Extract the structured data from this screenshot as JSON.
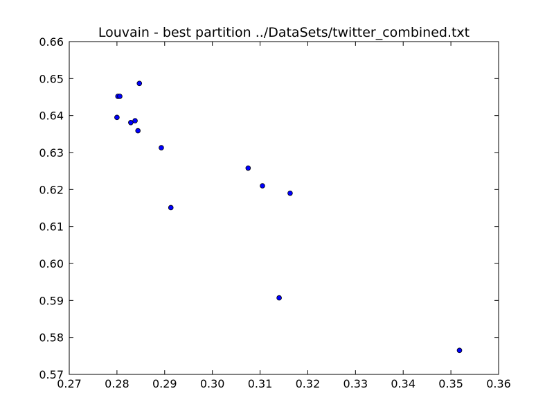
{
  "chart_data": {
    "type": "scatter",
    "title": "Louvain - best partition ../DataSets/twitter_combined.txt",
    "xlabel": "",
    "ylabel": "",
    "xlim": [
      0.27,
      0.36
    ],
    "ylim": [
      0.57,
      0.66
    ],
    "grid": false,
    "x_ticks": [
      "0.27",
      "0.28",
      "0.29",
      "0.30",
      "0.31",
      "0.32",
      "0.33",
      "0.34",
      "0.35",
      "0.36"
    ],
    "y_ticks": [
      "0.57",
      "0.58",
      "0.59",
      "0.60",
      "0.61",
      "0.62",
      "0.63",
      "0.64",
      "0.65",
      "0.66"
    ],
    "series": [
      {
        "color": "#0000ff",
        "edge_color": "#000000",
        "points": [
          {
            "x": 0.2802,
            "y": 0.6452
          },
          {
            "x": 0.2806,
            "y": 0.6452
          },
          {
            "x": 0.2847,
            "y": 0.6487
          },
          {
            "x": 0.28,
            "y": 0.6395
          },
          {
            "x": 0.2829,
            "y": 0.6381
          },
          {
            "x": 0.2838,
            "y": 0.6386
          },
          {
            "x": 0.2844,
            "y": 0.6359
          },
          {
            "x": 0.2893,
            "y": 0.6313
          },
          {
            "x": 0.2913,
            "y": 0.6151
          },
          {
            "x": 0.3075,
            "y": 0.6258
          },
          {
            "x": 0.3105,
            "y": 0.621
          },
          {
            "x": 0.3163,
            "y": 0.619
          },
          {
            "x": 0.314,
            "y": 0.5907
          },
          {
            "x": 0.3518,
            "y": 0.5765
          }
        ]
      }
    ]
  }
}
